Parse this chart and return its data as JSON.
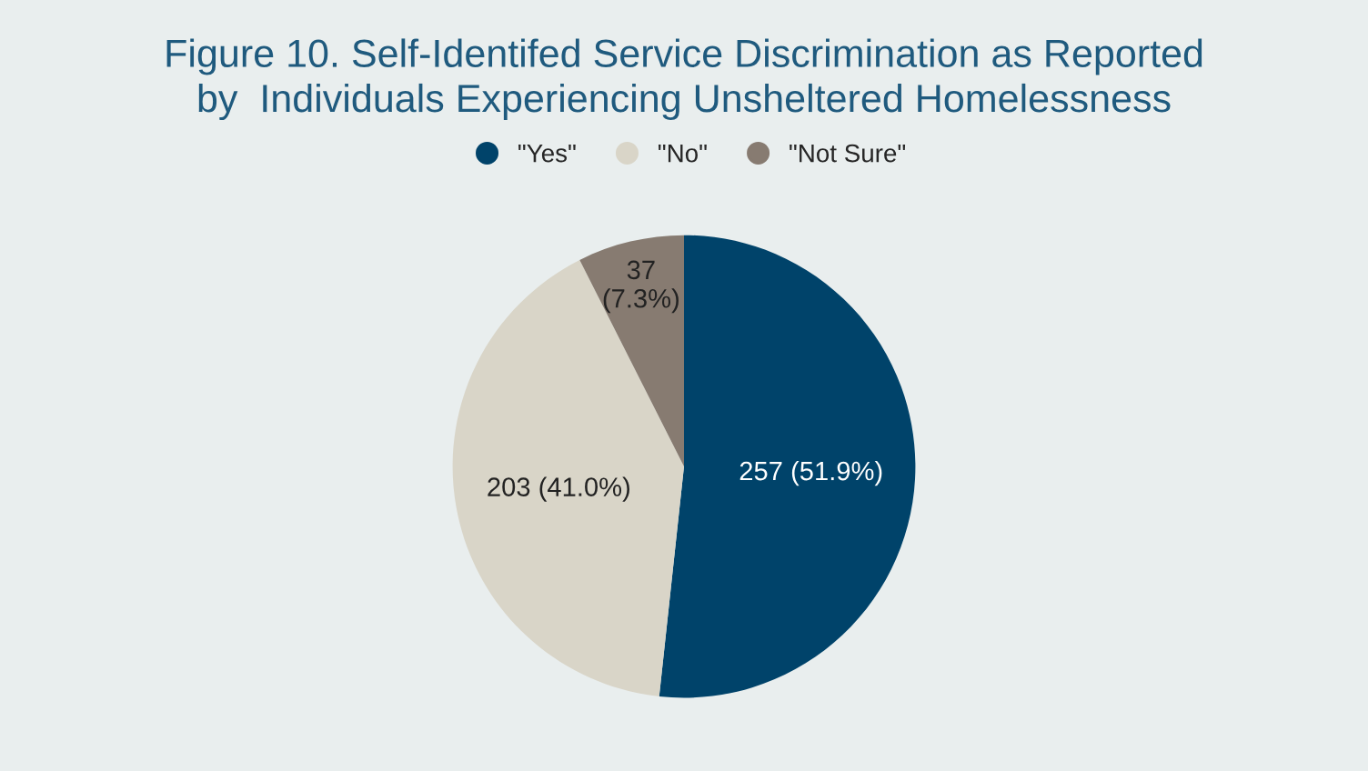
{
  "chart_data": {
    "type": "pie",
    "title": "Figure 10. Self-Identifed Service Discrimination as Reported\nby  Individuals Experiencing Unsheltered Homelessness",
    "categories": [
      "\"Yes\"",
      "\"No\"",
      "\"Not Sure\""
    ],
    "values": [
      257,
      203,
      37
    ],
    "colors": [
      "#00436a",
      "#d9d5c8",
      "#877b71"
    ],
    "value_labels": [
      "257 (51.9%)",
      "203 (41.0%)",
      "37\n(7.3%)"
    ],
    "legend": "top"
  }
}
